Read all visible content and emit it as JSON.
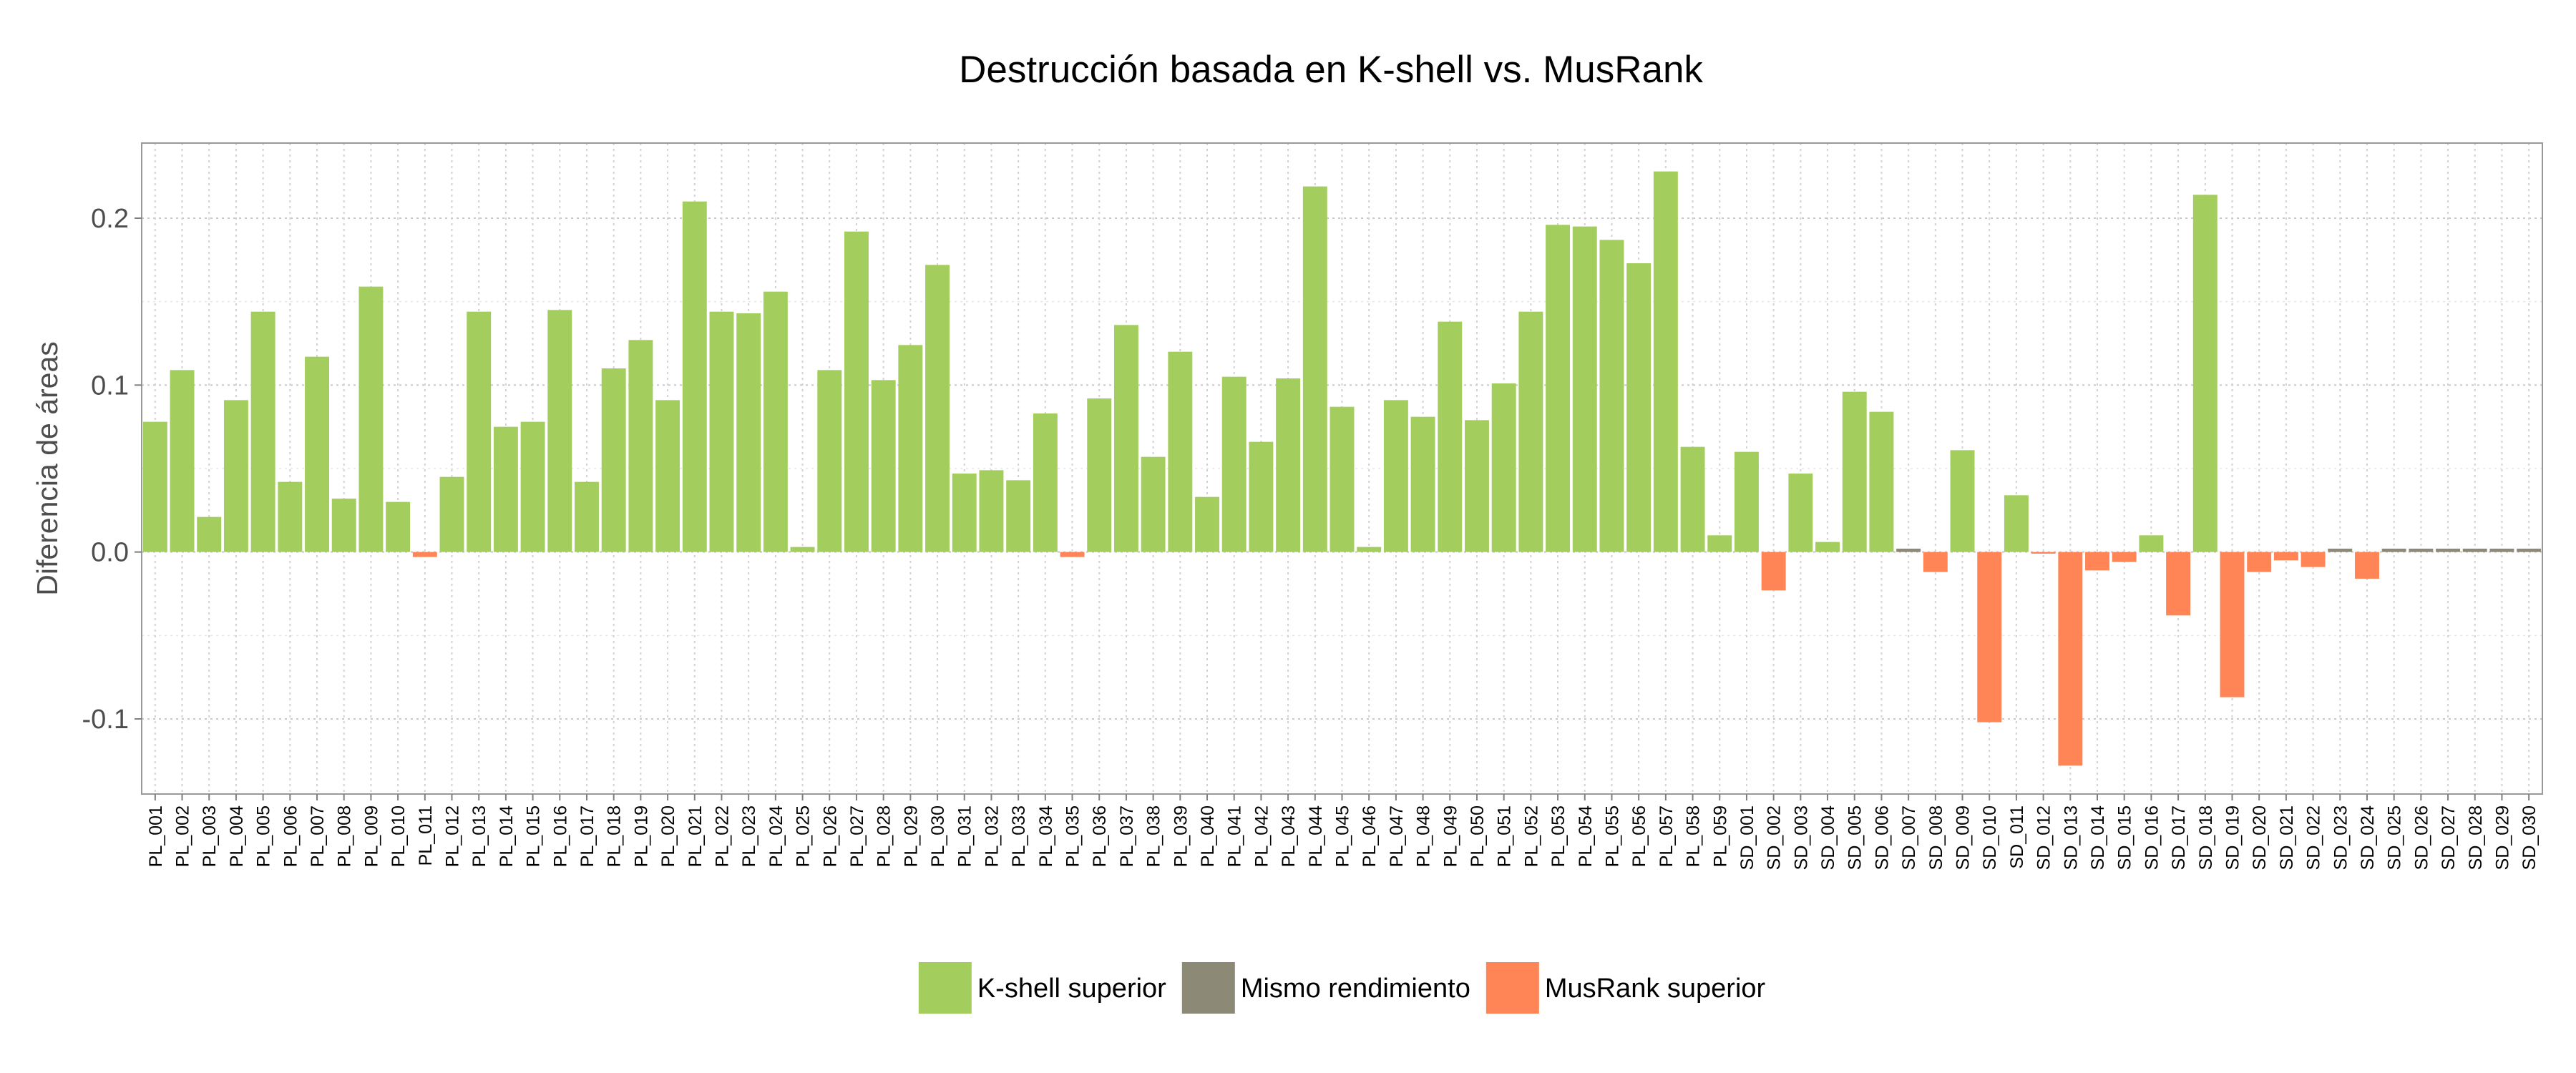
{
  "chart_data": {
    "type": "bar",
    "title": "Destrucción basada en K-shell vs. MusRank",
    "xlabel": "",
    "ylabel": "Diferencia de áreas",
    "ylim": [
      -0.145,
      0.245
    ],
    "yticks": [
      -0.1,
      0.0,
      0.1,
      0.2
    ],
    "ytick_labels": [
      "-0.1",
      "0.0",
      "0.1",
      "0.2"
    ],
    "grid": true,
    "legend_position": "bottom",
    "categories": [
      "PL_001",
      "PL_002",
      "PL_003",
      "PL_004",
      "PL_005",
      "PL_006",
      "PL_007",
      "PL_008",
      "PL_009",
      "PL_010",
      "PL_011",
      "PL_012",
      "PL_013",
      "PL_014",
      "PL_015",
      "PL_016",
      "PL_017",
      "PL_018",
      "PL_019",
      "PL_020",
      "PL_021",
      "PL_022",
      "PL_023",
      "PL_024",
      "PL_025",
      "PL_026",
      "PL_027",
      "PL_028",
      "PL_029",
      "PL_030",
      "PL_031",
      "PL_032",
      "PL_033",
      "PL_034",
      "PL_035",
      "PL_036",
      "PL_037",
      "PL_038",
      "PL_039",
      "PL_040",
      "PL_041",
      "PL_042",
      "PL_043",
      "PL_044",
      "PL_045",
      "PL_046",
      "PL_047",
      "PL_048",
      "PL_049",
      "PL_050",
      "PL_051",
      "PL_052",
      "PL_053",
      "PL_054",
      "PL_055",
      "PL_056",
      "PL_057",
      "PL_058",
      "PL_059",
      "SD_001",
      "SD_002",
      "SD_003",
      "SD_004",
      "SD_005",
      "SD_006",
      "SD_007",
      "SD_008",
      "SD_009",
      "SD_010",
      "SD_011",
      "SD_012",
      "SD_013",
      "SD_014",
      "SD_015",
      "SD_016",
      "SD_017",
      "SD_018",
      "SD_019",
      "SD_020",
      "SD_021",
      "SD_022",
      "SD_023",
      "SD_024",
      "SD_025",
      "SD_026",
      "SD_027",
      "SD_028",
      "SD_029",
      "SD_030"
    ],
    "values": [
      0.078,
      0.109,
      0.021,
      0.091,
      0.144,
      0.042,
      0.117,
      0.032,
      0.159,
      0.03,
      -0.003,
      0.045,
      0.144,
      0.075,
      0.078,
      0.145,
      0.042,
      0.11,
      0.127,
      0.091,
      0.21,
      0.144,
      0.143,
      0.156,
      0.003,
      0.109,
      0.192,
      0.103,
      0.124,
      0.172,
      0.047,
      0.049,
      0.043,
      0.083,
      -0.003,
      0.092,
      0.136,
      0.057,
      0.12,
      0.033,
      0.105,
      0.066,
      0.104,
      0.219,
      0.087,
      0.003,
      0.091,
      0.081,
      0.138,
      0.079,
      0.101,
      0.144,
      0.196,
      0.195,
      0.187,
      0.173,
      0.228,
      0.063,
      0.01,
      0.06,
      -0.023,
      0.047,
      0.006,
      0.096,
      0.084,
      0.002,
      -0.012,
      0.061,
      -0.102,
      0.034,
      -0.001,
      -0.128,
      -0.011,
      -0.006,
      0.01,
      -0.038,
      0.214,
      -0.087,
      -0.012,
      -0.005,
      -0.009,
      0.002,
      -0.016,
      0.002,
      0.002,
      0.002,
      0.002,
      0.002,
      0.002
    ],
    "groups": [
      "K",
      "K",
      "K",
      "K",
      "K",
      "K",
      "K",
      "K",
      "K",
      "K",
      "M",
      "K",
      "K",
      "K",
      "K",
      "K",
      "K",
      "K",
      "K",
      "K",
      "K",
      "K",
      "K",
      "K",
      "K",
      "K",
      "K",
      "K",
      "K",
      "K",
      "K",
      "K",
      "K",
      "K",
      "M",
      "K",
      "K",
      "K",
      "K",
      "K",
      "K",
      "K",
      "K",
      "K",
      "K",
      "K",
      "K",
      "K",
      "K",
      "K",
      "K",
      "K",
      "K",
      "K",
      "K",
      "K",
      "K",
      "K",
      "K",
      "K",
      "M",
      "K",
      "K",
      "K",
      "K",
      "S",
      "M",
      "K",
      "M",
      "K",
      "M",
      "M",
      "M",
      "M",
      "K",
      "M",
      "K",
      "M",
      "M",
      "M",
      "M",
      "S",
      "M",
      "S",
      "S",
      "S",
      "S",
      "S",
      "S"
    ],
    "legend": [
      {
        "key": "K",
        "label": "K-shell superior",
        "color": "#a3cd5c"
      },
      {
        "key": "S",
        "label": "Mismo rendimiento",
        "color": "#8c8a77"
      },
      {
        "key": "M",
        "label": "MusRank superior",
        "color": "#ff8557"
      }
    ]
  }
}
